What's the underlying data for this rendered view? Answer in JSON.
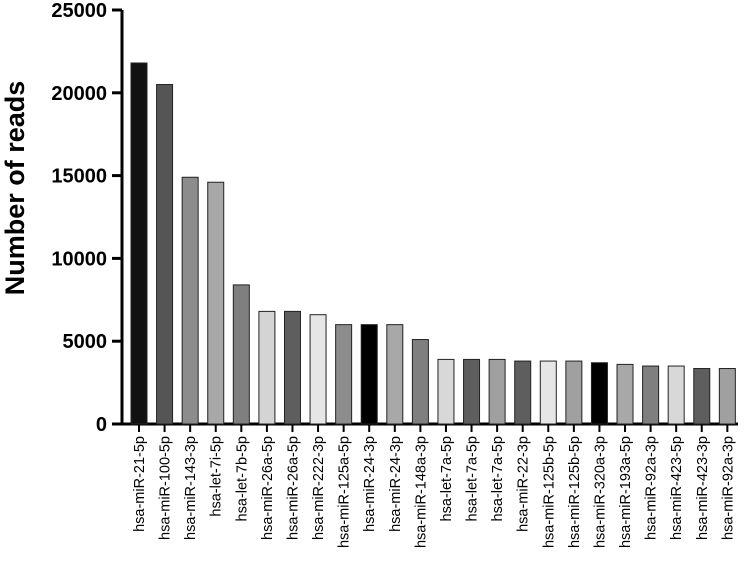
{
  "chart_data": {
    "type": "bar",
    "title": "",
    "xlabel": "",
    "ylabel": "Number of reads",
    "ylim": [
      0,
      25000
    ],
    "yticks": [
      0,
      5000,
      10000,
      15000,
      20000,
      25000
    ],
    "ytick_labels": [
      "0",
      "5000",
      "10000",
      "15000",
      "20000",
      "25000"
    ],
    "grid": false,
    "legend": "none",
    "categories": [
      "hsa-miR-21-5p",
      "hsa-miR-100-5p",
      "hsa-miR-143-3p",
      "hsa-let-7i-5p",
      "hsa-let-7b-5p",
      "hsa-miR-26a-5p",
      "hsa-miR-26a-5p",
      "hsa-miR-222-3p",
      "hsa-miR-125a-5p",
      "hsa-miR-24-3p",
      "hsa-miR-24-3p",
      "hsa-miR-148a-3p",
      "hsa-let-7a-5p",
      "hsa-let-7a-5p",
      "hsa-let-7a-5p",
      "hsa-miR-22-3p",
      "hsa-miR-125b-5p",
      "hsa-miR-125b-5p",
      "hsa-miR-320a-3p",
      "hsa-miR-193a-5p",
      "hsa-miR-92a-3p",
      "hsa-miR-423-5p",
      "hsa-miR-423-3p",
      "hsa-miR-92a-3p"
    ],
    "values": [
      21800,
      20500,
      14900,
      14600,
      8400,
      6800,
      6800,
      6600,
      6000,
      6000,
      6000,
      5100,
      3900,
      3900,
      3900,
      3800,
      3800,
      3800,
      3700,
      3600,
      3500,
      3500,
      3350,
      3350
    ],
    "colors": [
      "#111111",
      "#555555",
      "#8c8c8c",
      "#a8a8a8",
      "#7f7f7f",
      "#d4d4d4",
      "#5e5e5e",
      "#e6e6e6",
      "#8c8c8c",
      "#000000",
      "#a8a8a8",
      "#7f7f7f",
      "#d8d8d8",
      "#5e5e5e",
      "#a0a0a0",
      "#5e5e5e",
      "#e6e6e6",
      "#a0a0a0",
      "#000000",
      "#a8a8a8",
      "#7f7f7f",
      "#d8d8d8",
      "#5e5e5e",
      "#a0a0a0"
    ]
  }
}
